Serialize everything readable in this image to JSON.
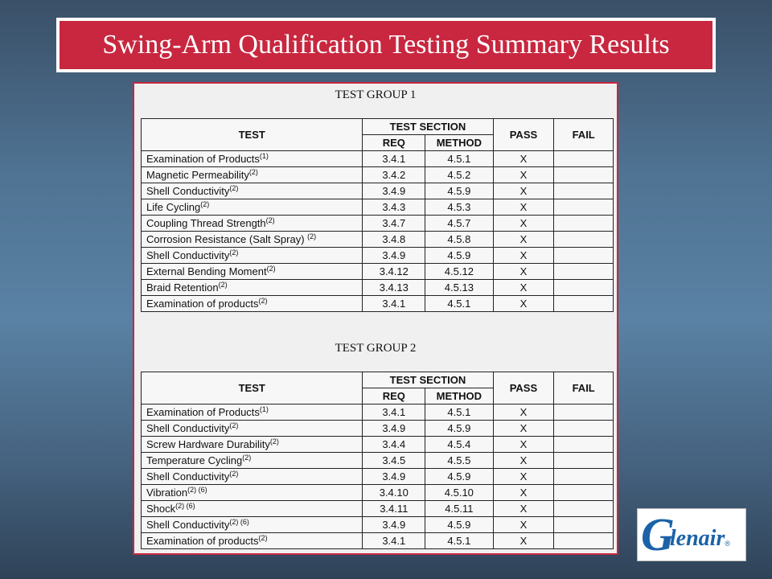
{
  "slide": {
    "title": "Swing-Arm Qualification Testing Summary Results"
  },
  "headers": {
    "test": "TEST",
    "test_section": "TEST SECTION",
    "req": "REQ",
    "method": "METHOD",
    "pass": "PASS",
    "fail": "FAIL"
  },
  "group1": {
    "title": "TEST GROUP 1",
    "rows": [
      {
        "test": "Examination of Products",
        "note": "(1)",
        "req": "3.4.1",
        "method": "4.5.1",
        "pass": "X",
        "fail": ""
      },
      {
        "test": "Magnetic Permeability",
        "note": "(2)",
        "req": "3.4.2",
        "method": "4.5.2",
        "pass": "X",
        "fail": ""
      },
      {
        "test": "Shell Conductivity",
        "note": "(2)",
        "req": "3.4.9",
        "method": "4.5.9",
        "pass": "X",
        "fail": ""
      },
      {
        "test": "Life Cycling",
        "note": "(2)",
        "req": "3.4.3",
        "method": "4.5.3",
        "pass": "X",
        "fail": ""
      },
      {
        "test": "Coupling Thread Strength",
        "note": "(2)",
        "req": "3.4.7",
        "method": "4.5.7",
        "pass": "X",
        "fail": ""
      },
      {
        "test": "Corrosion Resistance (Salt Spray) ",
        "note": "(2)",
        "req": "3.4.8",
        "method": "4.5.8",
        "pass": "X",
        "fail": ""
      },
      {
        "test": "Shell Conductivity",
        "note": "(2)",
        "req": "3.4.9",
        "method": "4.5.9",
        "pass": "X",
        "fail": ""
      },
      {
        "test": "External Bending Moment",
        "note": "(2)",
        "req": "3.4.12",
        "method": "4.5.12",
        "pass": "X",
        "fail": ""
      },
      {
        "test": "Braid Retention",
        "note": "(2)",
        "req": "3.4.13",
        "method": "4.5.13",
        "pass": "X",
        "fail": ""
      },
      {
        "test": "Examination of products",
        "note": "(2)",
        "req": "3.4.1",
        "method": "4.5.1",
        "pass": "X",
        "fail": ""
      }
    ]
  },
  "group2": {
    "title": "TEST GROUP 2",
    "rows": [
      {
        "test": "Examination of Products",
        "note": "(1)",
        "req": "3.4.1",
        "method": "4.5.1",
        "pass": "X",
        "fail": ""
      },
      {
        "test": "Shell Conductivity",
        "note": "(2)",
        "req": "3.4.9",
        "method": "4.5.9",
        "pass": "X",
        "fail": ""
      },
      {
        "test": "Screw Hardware Durability",
        "note": "(2)",
        "req": "3.4.4",
        "method": "4.5.4",
        "pass": "X",
        "fail": ""
      },
      {
        "test": "Temperature Cycling",
        "note": "(2)",
        "req": "3.4.5",
        "method": "4.5.5",
        "pass": "X",
        "fail": ""
      },
      {
        "test": "Shell Conductivity",
        "note": "(2)",
        "req": "3.4.9",
        "method": "4.5.9",
        "pass": "X",
        "fail": ""
      },
      {
        "test": "Vibration",
        "note": "(2) (6)",
        "req": "3.4.10",
        "method": "4.5.10",
        "pass": "X",
        "fail": ""
      },
      {
        "test": "Shock",
        "note": "(2) (6)",
        "req": "3.4.11",
        "method": "4.5.11",
        "pass": "X",
        "fail": ""
      },
      {
        "test": "Shell Conductivity",
        "note": "(2) (6)",
        "req": "3.4.9",
        "method": "4.5.9",
        "pass": "X",
        "fail": ""
      },
      {
        "test": "Examination of products",
        "note": "(2)",
        "req": "3.4.1",
        "method": "4.5.1",
        "pass": "X",
        "fail": ""
      }
    ]
  },
  "logo": {
    "initial": "G",
    "rest": "lenair",
    "mark": "®"
  },
  "colors": {
    "title_bar": "#c8273f",
    "logo_blue": "#1b62a8"
  }
}
